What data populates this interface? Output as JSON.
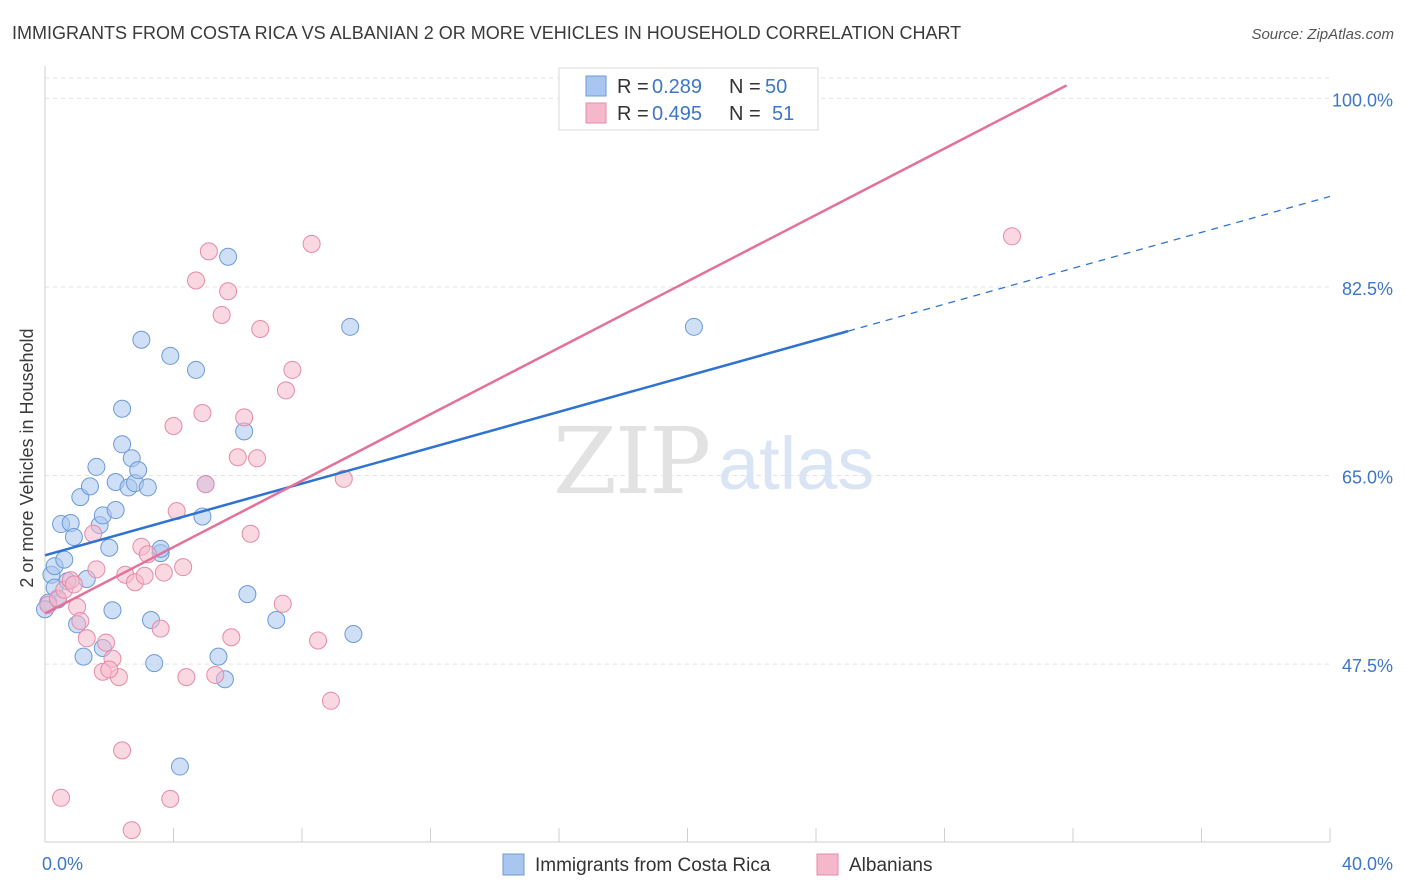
{
  "chart_data": {
    "type": "scatter",
    "title": "IMMIGRANTS FROM COSTA RICA VS ALBANIAN 2 OR MORE VEHICLES IN HOUSEHOLD CORRELATION CHART",
    "source": "Source: ZipAtlas.com",
    "ylabel": "2 or more Vehicles in Household",
    "xlim": [
      0,
      40
    ],
    "ylim": [
      31,
      103
    ],
    "x_tick_labels": {
      "min": "0.0%",
      "max": "40.0%"
    },
    "y_ticks": [
      {
        "value": 100.0,
        "label": "100.0%"
      },
      {
        "value": 82.5,
        "label": "82.5%"
      },
      {
        "value": 65.0,
        "label": "65.0%"
      },
      {
        "value": 47.5,
        "label": "47.5%"
      }
    ],
    "watermark": {
      "zip": "ZIP",
      "atlas": "atlas"
    },
    "colors": {
      "blue_fill": "#a8c6ef",
      "blue_stroke": "#6b9ad8",
      "blue_line": "#2f73d0",
      "pink_fill": "#f5b8cb",
      "pink_stroke": "#e68aa8",
      "pink_line": "#e3719a",
      "grid": "#e2e2e2"
    },
    "legend": {
      "rows": [
        {
          "r_label": "R =",
          "r_value": "0.289",
          "n_label": "N =",
          "n_value": "50"
        },
        {
          "r_label": "R =",
          "r_value": "0.495",
          "n_label": "N =",
          "n_value": "51"
        }
      ]
    },
    "series": [
      {
        "name": "Immigrants from Costa Rica",
        "color": "blue",
        "trend": {
          "x0": 0,
          "y0": 57.6,
          "x1": 25,
          "y1": 78.4,
          "dash_x1": 40,
          "dash_y1": 90.9
        },
        "points": [
          [
            0.2,
            55.8
          ],
          [
            0.3,
            56.6
          ],
          [
            0.3,
            54.6
          ],
          [
            0.4,
            53.5
          ],
          [
            0.5,
            60.5
          ],
          [
            0.6,
            57.2
          ],
          [
            0.7,
            55.2
          ],
          [
            0.8,
            60.6
          ],
          [
            0.9,
            59.3
          ],
          [
            1.0,
            51.2
          ],
          [
            1.1,
            63.0
          ],
          [
            1.2,
            48.2
          ],
          [
            1.3,
            55.4
          ],
          [
            1.4,
            64.0
          ],
          [
            1.6,
            65.8
          ],
          [
            1.7,
            60.4
          ],
          [
            1.8,
            61.3
          ],
          [
            1.8,
            49.0
          ],
          [
            2.0,
            58.3
          ],
          [
            2.1,
            52.5
          ],
          [
            2.2,
            61.8
          ],
          [
            2.2,
            64.4
          ],
          [
            2.4,
            67.9
          ],
          [
            2.4,
            71.2
          ],
          [
            2.6,
            63.9
          ],
          [
            2.7,
            66.6
          ],
          [
            2.8,
            64.3
          ],
          [
            2.9,
            65.5
          ],
          [
            3.0,
            77.6
          ],
          [
            3.2,
            63.9
          ],
          [
            3.3,
            51.6
          ],
          [
            3.4,
            47.6
          ],
          [
            3.6,
            57.8
          ],
          [
            3.6,
            58.2
          ],
          [
            3.9,
            76.1
          ],
          [
            4.2,
            38.0
          ],
          [
            4.7,
            74.8
          ],
          [
            4.9,
            61.2
          ],
          [
            5.0,
            64.2
          ],
          [
            5.4,
            48.2
          ],
          [
            5.6,
            46.1
          ],
          [
            5.7,
            85.3
          ],
          [
            6.2,
            69.1
          ],
          [
            6.3,
            54.0
          ],
          [
            7.2,
            51.6
          ],
          [
            9.5,
            78.8
          ],
          [
            9.6,
            50.3
          ],
          [
            20.2,
            78.8
          ],
          [
            0.1,
            53.2
          ],
          [
            0.0,
            52.6
          ]
        ]
      },
      {
        "name": "Albanians",
        "color": "pink",
        "trend": {
          "x0": 0,
          "y0": 52.2,
          "x1": 31.8,
          "y1": 101.2
        },
        "points": [
          [
            0.1,
            53.0
          ],
          [
            0.4,
            53.6
          ],
          [
            0.5,
            35.1
          ],
          [
            0.6,
            54.4
          ],
          [
            0.8,
            55.3
          ],
          [
            0.9,
            54.9
          ],
          [
            1.0,
            52.8
          ],
          [
            1.1,
            51.5
          ],
          [
            1.3,
            49.9
          ],
          [
            1.5,
            59.6
          ],
          [
            1.6,
            56.3
          ],
          [
            1.8,
            46.8
          ],
          [
            1.9,
            49.5
          ],
          [
            2.1,
            48.0
          ],
          [
            2.3,
            46.3
          ],
          [
            2.4,
            39.5
          ],
          [
            2.5,
            55.8
          ],
          [
            2.7,
            32.1
          ],
          [
            2.8,
            55.1
          ],
          [
            3.0,
            58.4
          ],
          [
            3.1,
            55.7
          ],
          [
            3.2,
            57.7
          ],
          [
            3.6,
            50.8
          ],
          [
            3.7,
            56.0
          ],
          [
            3.9,
            35.0
          ],
          [
            4.0,
            69.6
          ],
          [
            4.1,
            61.7
          ],
          [
            4.3,
            56.5
          ],
          [
            4.4,
            46.3
          ],
          [
            4.7,
            83.1
          ],
          [
            4.9,
            70.8
          ],
          [
            5.0,
            64.2
          ],
          [
            5.1,
            85.8
          ],
          [
            5.3,
            46.5
          ],
          [
            5.5,
            79.9
          ],
          [
            5.7,
            82.1
          ],
          [
            5.8,
            50.0
          ],
          [
            6.0,
            66.7
          ],
          [
            6.2,
            70.4
          ],
          [
            6.4,
            59.6
          ],
          [
            6.6,
            66.6
          ],
          [
            6.7,
            78.6
          ],
          [
            7.4,
            53.1
          ],
          [
            7.5,
            72.9
          ],
          [
            7.7,
            74.8
          ],
          [
            8.3,
            86.5
          ],
          [
            8.5,
            49.7
          ],
          [
            8.9,
            44.1
          ],
          [
            9.3,
            64.7
          ],
          [
            30.1,
            87.2
          ],
          [
            2.0,
            47.0
          ]
        ]
      }
    ]
  }
}
